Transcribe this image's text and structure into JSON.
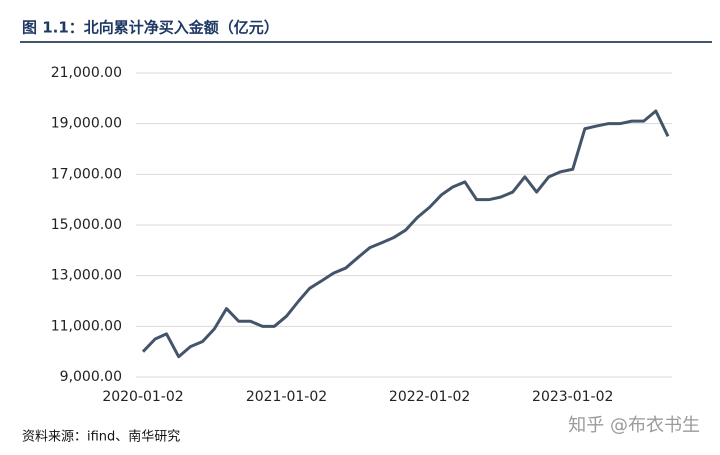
{
  "chart_data": {
    "type": "line",
    "title": "图 1.1：北向累计净买入金额（亿元）",
    "source": "资料来源：ifind、南华研究",
    "watermark": "知乎 @布衣书生",
    "x": [
      "2020-01-02",
      "2020-02-02",
      "2020-03-02",
      "2020-04-02",
      "2020-05-02",
      "2020-06-02",
      "2020-07-02",
      "2020-08-02",
      "2020-09-02",
      "2020-10-02",
      "2020-11-02",
      "2020-12-02",
      "2021-01-02",
      "2021-02-02",
      "2021-03-02",
      "2021-04-02",
      "2021-05-02",
      "2021-06-02",
      "2021-07-02",
      "2021-08-02",
      "2021-09-02",
      "2021-10-02",
      "2021-11-02",
      "2021-12-02",
      "2022-01-02",
      "2022-02-02",
      "2022-03-02",
      "2022-04-02",
      "2022-05-02",
      "2022-06-02",
      "2022-07-02",
      "2022-08-02",
      "2022-09-02",
      "2022-10-02",
      "2022-11-02",
      "2022-12-02",
      "2023-01-02",
      "2023-02-02",
      "2023-03-02",
      "2023-04-02",
      "2023-05-02",
      "2023-06-02",
      "2023-07-02",
      "2023-08-02",
      "2023-09-02"
    ],
    "series": [
      {
        "name": "北向累计净买入金额",
        "color": "#44546a",
        "values": [
          10000,
          10500,
          10700,
          9800,
          10200,
          10400,
          10900,
          11700,
          11200,
          11200,
          11000,
          11000,
          11400,
          12000,
          12500,
          12800,
          13100,
          13300,
          13700,
          14100,
          14300,
          14500,
          14800,
          15300,
          15700,
          16200,
          16500,
          16700,
          16000,
          16000,
          16100,
          16300,
          16900,
          16300,
          16900,
          17100,
          17200,
          18800,
          18900,
          19000,
          19000,
          19100,
          19100,
          19500,
          18500
        ]
      }
    ],
    "xlim": [
      "2020-01-02",
      "2023-09-02"
    ],
    "xticks": [
      "2020-01-02",
      "2021-01-02",
      "2022-01-02",
      "2023-01-02"
    ],
    "ylim": [
      9000,
      21000
    ],
    "yticks": [
      {
        "value": 9000,
        "label": "9,000.00"
      },
      {
        "value": 11000,
        "label": "11,000.00"
      },
      {
        "value": 13000,
        "label": "13,000.00"
      },
      {
        "value": 15000,
        "label": "15,000.00"
      },
      {
        "value": 17000,
        "label": "17,000.00"
      },
      {
        "value": 19000,
        "label": "19,000.00"
      },
      {
        "value": 21000,
        "label": "21,000.00"
      }
    ],
    "grid": true
  }
}
